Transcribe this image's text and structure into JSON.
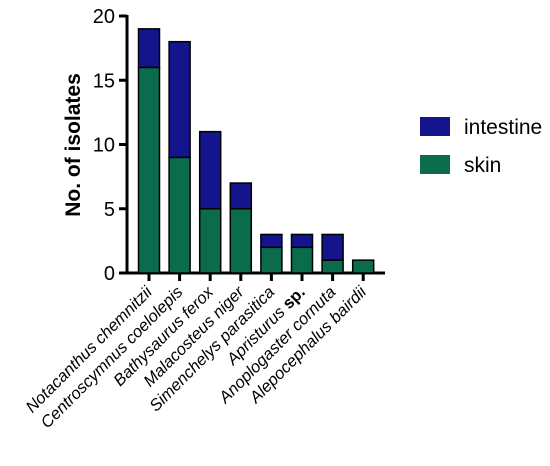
{
  "chart_data": {
    "type": "bar",
    "stacked": true,
    "ylabel": "No. of isolates",
    "xlabel": "",
    "ylim": [
      0,
      20
    ],
    "yticks": [
      0,
      5,
      10,
      15,
      20
    ],
    "categories": [
      {
        "name": "Notacanthus chemnitzii",
        "suffix": ""
      },
      {
        "name": "Centroscymnus coelolepis",
        "suffix": ""
      },
      {
        "name": "Bathysaurus ferox",
        "suffix": ""
      },
      {
        "name": "Malacosteus niger",
        "suffix": ""
      },
      {
        "name": "Simenchelys parasitica",
        "suffix": ""
      },
      {
        "name": "Apristurus",
        "suffix": " sp."
      },
      {
        "name": "Anoplogaster cornuta",
        "suffix": ""
      },
      {
        "name": "Alepocephalus bairdii",
        "suffix": ""
      }
    ],
    "series": [
      {
        "name": "skin",
        "color": "#0a6b4d",
        "values": [
          16,
          9,
          5,
          5,
          2,
          2,
          1,
          1
        ]
      },
      {
        "name": "intestine",
        "color": "#14148c",
        "values": [
          3,
          9,
          6,
          2,
          1,
          1,
          2,
          0
        ]
      }
    ],
    "legend": {
      "position": "right",
      "order": [
        "intestine",
        "skin"
      ]
    },
    "grid": false
  }
}
